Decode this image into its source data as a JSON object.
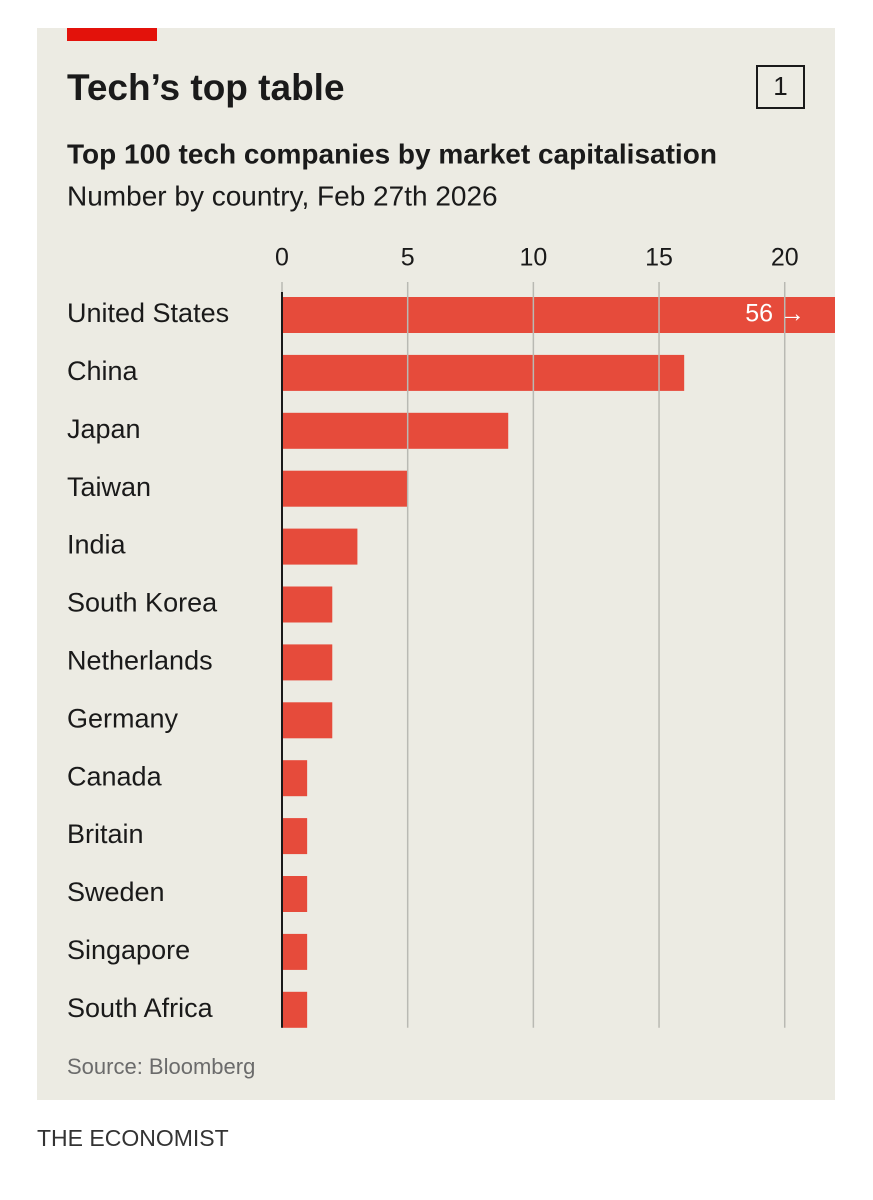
{
  "chart_data": {
    "type": "bar",
    "orientation": "horizontal",
    "title": "Tech’s top table",
    "chart_number": "1",
    "subtitle": "Top 100 tech companies by market capitalisation",
    "description": "Number by country, Feb 27th 2026",
    "categories": [
      "United States",
      "China",
      "Japan",
      "Taiwan",
      "India",
      "South Korea",
      "Netherlands",
      "Germany",
      "Canada",
      "Britain",
      "Sweden",
      "Singapore",
      "South Africa"
    ],
    "values": [
      56,
      16,
      9,
      5,
      3,
      2,
      2,
      2,
      1,
      1,
      1,
      1,
      1
    ],
    "value_labels": [
      "56 →",
      null,
      null,
      null,
      null,
      null,
      null,
      null,
      null,
      null,
      null,
      null,
      null
    ],
    "color": "#e64b3b",
    "xlim": [
      0,
      22
    ],
    "xticks": [
      0,
      5,
      10,
      15,
      20
    ],
    "grid": true,
    "source": "Source: Bloomberg",
    "publisher": "THE ECONOMIST"
  }
}
